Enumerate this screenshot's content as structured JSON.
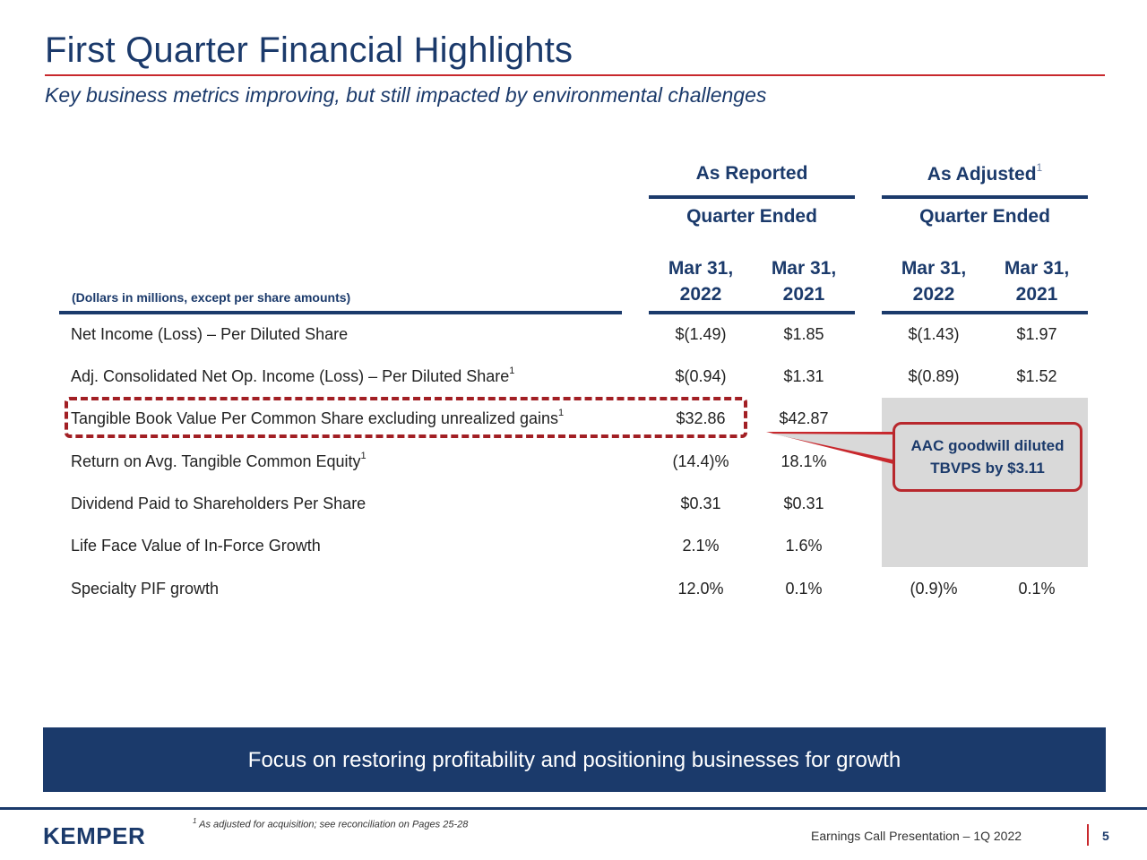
{
  "header": {
    "title": "First Quarter Financial Highlights",
    "subtitle": "Key business metrics improving, but still impacted by environmental challenges"
  },
  "table": {
    "group_reported": "As Reported",
    "group_adjusted": "As Adjusted",
    "group_adjusted_note": "1",
    "period_label_reported": "Quarter Ended",
    "period_label_adjusted": "Quarter Ended",
    "col_dates": [
      {
        "line1": "Mar 31,",
        "line2": "2022"
      },
      {
        "line1": "Mar 31,",
        "line2": "2021"
      },
      {
        "line1": "Mar 31,",
        "line2": "2022"
      },
      {
        "line1": "Mar 31,",
        "line2": "2021"
      }
    ],
    "units_note": "(Dollars in millions, except per share amounts)",
    "rows": [
      {
        "label": "Net Income (Loss) – Per Diluted Share",
        "note": "",
        "values": [
          "$(1.49)",
          "$1.85",
          "$(1.43)",
          "$1.97"
        ]
      },
      {
        "label": "Adj. Consolidated Net Op. Income (Loss) – Per Diluted Share",
        "note": "1",
        "values": [
          "$(0.94)",
          "$1.31",
          "$(0.89)",
          "$1.52"
        ]
      },
      {
        "label": "Tangible Book Value Per Common Share excluding unrealized gains",
        "note": "1",
        "values": [
          "$32.86",
          "$42.87",
          "",
          ""
        ]
      },
      {
        "label": "Return on Avg. Tangible Common Equity",
        "note": "1",
        "values": [
          "(14.4)%",
          "18.1%",
          "",
          ""
        ]
      },
      {
        "label": "Dividend Paid to Shareholders Per Share",
        "note": "",
        "values": [
          "$0.31",
          "$0.31",
          "",
          ""
        ]
      },
      {
        "label": "Life Face Value of In-Force Growth",
        "note": "",
        "values": [
          "2.1%",
          "1.6%",
          "",
          ""
        ]
      },
      {
        "label": "Specialty PIF growth",
        "note": "",
        "values": [
          "12.0%",
          "0.1%",
          "(0.9)%",
          "0.1%"
        ]
      }
    ]
  },
  "callout": {
    "line1": "AAC goodwill diluted",
    "line2": "TBVPS by $3.11"
  },
  "banner": {
    "text": "Focus on restoring profitability and positioning businesses for growth"
  },
  "footer": {
    "logo": "KEMPER",
    "footnote_mark": "1",
    "footnote": "As adjusted for acquisition; see reconciliation on Pages 25-28",
    "presentation": "Earnings Call Presentation – 1Q 2022",
    "page_number": "5"
  },
  "colors": {
    "navy": "#1b3a6b",
    "accent_red": "#c8282d",
    "highlight_gray": "#d9d9d9"
  }
}
